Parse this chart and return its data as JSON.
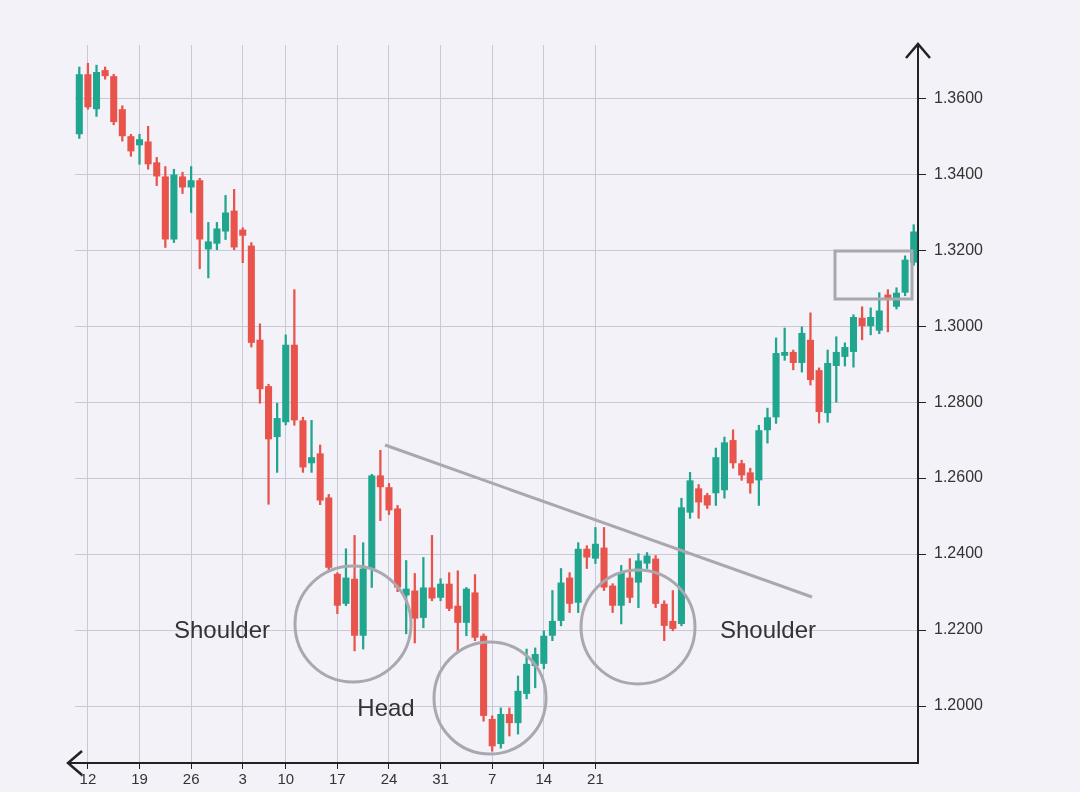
{
  "chart_data": {
    "type": "candlestick",
    "categories": [
      null,
      "12",
      null,
      null,
      null,
      null,
      null,
      "19",
      null,
      null,
      null,
      null,
      null,
      "26",
      null,
      null,
      null,
      null,
      null,
      "3",
      null,
      null,
      null,
      null,
      "10",
      null,
      null,
      null,
      null,
      null,
      "17",
      null,
      null,
      null,
      null,
      null,
      "24",
      null,
      null,
      null,
      null,
      null,
      "31",
      null,
      null,
      null,
      null,
      null,
      "7",
      null,
      null,
      null,
      null,
      null,
      "14",
      null,
      null,
      null,
      null,
      null,
      "21",
      null,
      null,
      null,
      null,
      null,
      null,
      null,
      null,
      null,
      null,
      null,
      null,
      null,
      null,
      null,
      null,
      null,
      null,
      null,
      null,
      null,
      null,
      null,
      null,
      null,
      null,
      null,
      null,
      null,
      null,
      null,
      null,
      null,
      null,
      null,
      null,
      null
    ],
    "ohlc": [
      [
        1.3505,
        1.3682,
        1.3494,
        1.3663
      ],
      [
        1.3663,
        1.3692,
        1.3571,
        1.3576
      ],
      [
        1.3571,
        1.3687,
        1.3552,
        1.3669
      ],
      [
        1.3674,
        1.3682,
        1.365,
        1.3658
      ],
      [
        1.3658,
        1.3663,
        1.353,
        1.3537
      ],
      [
        1.3571,
        1.358,
        1.3487,
        1.35
      ],
      [
        1.35,
        1.3505,
        1.3447,
        1.346
      ],
      [
        1.3476,
        1.3505,
        1.3426,
        1.3492
      ],
      [
        1.3486,
        1.3526,
        1.3413,
        1.3426
      ],
      [
        1.3431,
        1.3444,
        1.337,
        1.3394
      ],
      [
        1.3394,
        1.342,
        1.3207,
        1.3228
      ],
      [
        1.3228,
        1.3413,
        1.322,
        1.3399
      ],
      [
        1.3394,
        1.3405,
        1.3349,
        1.3365
      ],
      [
        1.3365,
        1.342,
        1.3299,
        1.3384
      ],
      [
        1.3384,
        1.3389,
        1.3151,
        1.3228
      ],
      [
        1.3202,
        1.3273,
        1.3127,
        1.3223
      ],
      [
        1.3217,
        1.3273,
        1.3201,
        1.3257
      ],
      [
        1.3249,
        1.3344,
        1.3228,
        1.3299
      ],
      [
        1.3304,
        1.336,
        1.3201,
        1.3207
      ],
      [
        1.3254,
        1.3259,
        1.3167,
        1.3238
      ],
      [
        1.3212,
        1.322,
        1.2945,
        1.2956
      ],
      [
        1.2964,
        1.3006,
        1.2797,
        1.2834
      ],
      [
        1.2842,
        1.2847,
        1.2531,
        1.2702
      ],
      [
        1.2708,
        1.2797,
        1.2615,
        1.2758
      ],
      [
        1.2747,
        1.2977,
        1.274,
        1.2951
      ],
      [
        1.2951,
        1.3096,
        1.2739,
        1.2752
      ],
      [
        1.2752,
        1.276,
        1.2615,
        1.2628
      ],
      [
        1.2639,
        1.2752,
        1.2615,
        1.2655
      ],
      [
        1.2665,
        1.2687,
        1.253,
        1.2541
      ],
      [
        1.2549,
        1.2557,
        1.2356,
        1.2364
      ],
      [
        1.2348,
        1.2351,
        1.2243,
        1.2264
      ],
      [
        1.2269,
        1.2414,
        1.2264,
        1.2338
      ],
      [
        1.2335,
        1.2449,
        1.2145,
        1.2185
      ],
      [
        1.2185,
        1.243,
        1.215,
        1.2362
      ],
      [
        1.2362,
        1.261,
        1.2312,
        1.2607
      ],
      [
        1.2607,
        1.2673,
        1.2488,
        1.2576
      ],
      [
        1.2576,
        1.2586,
        1.2504,
        1.2515
      ],
      [
        1.252,
        1.2528,
        1.2301,
        1.2312
      ],
      [
        1.2291,
        1.2383,
        1.219,
        1.2309
      ],
      [
        1.2304,
        1.2349,
        1.2166,
        1.223
      ],
      [
        1.2232,
        1.2391,
        1.2206,
        1.2312
      ],
      [
        1.2312,
        1.2449,
        1.2277,
        1.2283
      ],
      [
        1.2285,
        1.2335,
        1.2277,
        1.2322
      ],
      [
        1.2322,
        1.2351,
        1.2251,
        1.2256
      ],
      [
        1.2264,
        1.2356,
        1.2145,
        1.2219
      ],
      [
        1.2219,
        1.2312,
        1.2185,
        1.2309
      ],
      [
        1.2299,
        1.2346,
        1.2172,
        1.218
      ],
      [
        1.2185,
        1.219,
        1.196,
        1.1974
      ],
      [
        1.1966,
        1.1974,
        1.1881,
        1.1894
      ],
      [
        1.19,
        1.1995,
        1.1889,
        1.1979
      ],
      [
        1.1979,
        1.1995,
        1.1921,
        1.1955
      ],
      [
        1.1955,
        1.2079,
        1.1926,
        1.204
      ],
      [
        1.2032,
        1.215,
        1.2019,
        1.2111
      ],
      [
        1.2105,
        1.2153,
        1.2048,
        1.2137
      ],
      [
        1.2111,
        1.2198,
        1.2098,
        1.2185
      ],
      [
        1.2185,
        1.2304,
        1.2172,
        1.2224
      ],
      [
        1.2224,
        1.2362,
        1.2211,
        1.2325
      ],
      [
        1.2338,
        1.2351,
        1.2246,
        1.2269
      ],
      [
        1.2272,
        1.243,
        1.2246,
        1.2414
      ],
      [
        1.2414,
        1.2422,
        1.2362,
        1.2391
      ],
      [
        1.2388,
        1.247,
        1.2375,
        1.2427
      ],
      [
        1.2417,
        1.247,
        1.2304,
        1.2312
      ],
      [
        1.2317,
        1.2322,
        1.2246,
        1.2264
      ],
      [
        1.2264,
        1.237,
        1.2216,
        1.2351
      ],
      [
        1.2338,
        1.2388,
        1.2272,
        1.2285
      ],
      [
        1.2325,
        1.2401,
        1.2259,
        1.2383
      ],
      [
        1.2375,
        1.2404,
        1.2362,
        1.2396
      ],
      [
        1.2388,
        1.2396,
        1.2259,
        1.2269
      ],
      [
        1.2269,
        1.2277,
        1.2172,
        1.2211
      ],
      [
        1.2224,
        1.2304,
        1.2198,
        1.2203
      ],
      [
        1.2216,
        1.2547,
        1.2211,
        1.2523
      ],
      [
        1.2509,
        1.2615,
        1.2494,
        1.2594
      ],
      [
        1.2573,
        1.2583,
        1.2494,
        1.2536
      ],
      [
        1.2555,
        1.256,
        1.252,
        1.2528
      ],
      [
        1.256,
        1.2679,
        1.2528,
        1.2655
      ],
      [
        1.2568,
        1.2708,
        1.2547,
        1.2694
      ],
      [
        1.27,
        1.2727,
        1.2626,
        1.2639
      ],
      [
        1.2639,
        1.2647,
        1.2594,
        1.2607
      ],
      [
        1.2615,
        1.2626,
        1.256,
        1.2586
      ],
      [
        1.2594,
        1.2739,
        1.2528,
        1.2726
      ],
      [
        1.2726,
        1.2784,
        1.2692,
        1.276
      ],
      [
        1.276,
        1.2969,
        1.2744,
        1.2929
      ],
      [
        1.2922,
        1.2995,
        1.291,
        1.2932
      ],
      [
        1.2932,
        1.2937,
        1.2885,
        1.2903
      ],
      [
        1.2903,
        1.2998,
        1.2879,
        1.2982
      ],
      [
        1.2964,
        1.3035,
        1.2845,
        1.2858
      ],
      [
        1.2884,
        1.289,
        1.2745,
        1.2774
      ],
      [
        1.2771,
        1.2937,
        1.2747,
        1.2903
      ],
      [
        1.2895,
        1.2972,
        1.28,
        1.2932
      ],
      [
        1.2919,
        1.2956,
        1.2895,
        1.2945
      ],
      [
        1.2932,
        1.303,
        1.2892,
        1.3024
      ],
      [
        1.3022,
        1.3051,
        1.2964,
        1.3
      ],
      [
        1.3,
        1.3048,
        1.2977,
        1.3024
      ],
      [
        1.2988,
        1.3088,
        1.298,
        1.3041
      ],
      [
        1.3083,
        1.3096,
        1.2985,
        1.307
      ],
      [
        1.3051,
        1.3101,
        1.3045,
        1.3088
      ],
      [
        1.3088,
        1.3185,
        1.308,
        1.3175
      ],
      [
        1.3167,
        1.3267,
        1.316,
        1.3249
      ]
    ],
    "colors": [
      "#20a58e",
      "#e8534b",
      "#20a58e",
      "#e8534b",
      "#e8534b",
      "#e8534b",
      "#e8534b",
      "#20a58e",
      "#e8534b",
      "#e8534b",
      "#e8534b",
      "#20a58e",
      "#e8534b",
      "#20a58e",
      "#e8534b",
      "#20a58e",
      "#20a58e",
      "#20a58e",
      "#e8534b",
      "#e8534b",
      "#e8534b",
      "#e8534b",
      "#e8534b",
      "#20a58e",
      "#20a58e",
      "#e8534b",
      "#e8534b",
      "#20a58e",
      "#e8534b",
      "#e8534b",
      "#e8534b",
      "#20a58e",
      "#e8534b",
      "#20a58e",
      "#20a58e",
      "#e8534b",
      "#e8534b",
      "#e8534b",
      "#20a58e",
      "#e8534b",
      "#20a58e",
      "#e8534b",
      "#20a58e",
      "#e8534b",
      "#e8534b",
      "#20a58e",
      "#e8534b",
      "#e8534b",
      "#e8534b",
      "#20a58e",
      "#e8534b",
      "#20a58e",
      "#20a58e",
      "#20a58e",
      "#20a58e",
      "#20a58e",
      "#20a58e",
      "#e8534b",
      "#20a58e",
      "#e8534b",
      "#20a58e",
      "#e8534b",
      "#e8534b",
      "#20a58e",
      "#e8534b",
      "#20a58e",
      "#20a58e",
      "#e8534b",
      "#e8534b",
      "#e8534b",
      "#20a58e",
      "#20a58e",
      "#e8534b",
      "#e8534b",
      "#20a58e",
      "#20a58e",
      "#e8534b",
      "#e8534b",
      "#e8534b",
      "#20a58e",
      "#20a58e",
      "#20a58e",
      "#20a58e",
      "#e8534b",
      "#20a58e",
      "#e8534b",
      "#e8534b",
      "#20a58e",
      "#20a58e",
      "#20a58e",
      "#20a58e",
      "#e8534b",
      "#20a58e",
      "#20a58e",
      "#e8534b",
      "#20a58e",
      "#20a58e",
      "#20a58e"
    ],
    "ylim": [
      1.185,
      1.374
    ],
    "yticks": [
      {
        "value": 1.2,
        "label": "1.2000"
      },
      {
        "value": 1.22,
        "label": "1.2200"
      },
      {
        "value": 1.24,
        "label": "1.2400"
      },
      {
        "value": 1.26,
        "label": "1.2600"
      },
      {
        "value": 1.28,
        "label": "1.2800"
      },
      {
        "value": 1.3,
        "label": "1.3000"
      },
      {
        "value": 1.32,
        "label": "1.3200"
      },
      {
        "value": 1.34,
        "label": "1.3400"
      },
      {
        "value": 1.36,
        "label": "1.3600"
      }
    ],
    "grid": true,
    "annotations": [
      "Shoulder",
      "Head",
      "Shoulder"
    ]
  }
}
